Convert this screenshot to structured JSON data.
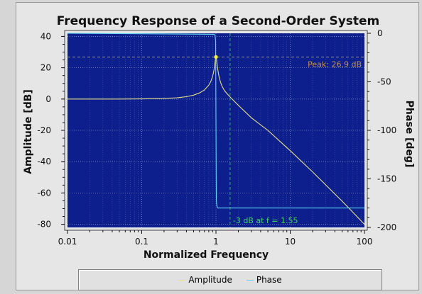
{
  "chart_data": {
    "type": "line",
    "title": "Frequency Response of a Second-Order System",
    "xlabel": "Normalized Frequency",
    "ylabel_left": "Amplitude [dB]",
    "ylabel_right": "Phase [deg]",
    "x_scale": "log",
    "xlim": [
      0.01,
      100
    ],
    "ylim_left": [
      -82,
      42
    ],
    "ylim_right": [
      -200,
      0
    ],
    "x_ticks": [
      "0.01",
      "0.1",
      "1",
      "10",
      "100"
    ],
    "y_left_ticks": [
      "40",
      "20",
      "0",
      "-20",
      "-40",
      "-60",
      "-80"
    ],
    "y_right_ticks": [
      "0",
      "-50",
      "-100",
      "-150",
      "-200"
    ],
    "grid": true,
    "background": "#0c1f8c",
    "series": [
      {
        "name": "Amplitude",
        "axis": "left",
        "color": "#e6e08a",
        "x": [
          0.01,
          0.05,
          0.1,
          0.2,
          0.3,
          0.4,
          0.5,
          0.6,
          0.7,
          0.8,
          0.85,
          0.9,
          0.93,
          0.95,
          0.97,
          0.98,
          0.99,
          1.0,
          1.01,
          1.02,
          1.03,
          1.05,
          1.07,
          1.1,
          1.15,
          1.2,
          1.3,
          1.5,
          2,
          3,
          5,
          10,
          20,
          50,
          100
        ],
        "values": [
          0.0,
          0.0,
          0.1,
          0.4,
          0.8,
          1.5,
          2.5,
          3.9,
          5.8,
          8.9,
          11.1,
          14.4,
          17.3,
          19.9,
          23.3,
          25.1,
          26.5,
          26.9,
          26.5,
          25.1,
          23.3,
          19.9,
          17.3,
          14.4,
          10.9,
          8.4,
          5.4,
          2.0,
          -4.0,
          -12.0,
          -20.0,
          -33.0,
          -46.5,
          -65.2,
          -80.0
        ]
      },
      {
        "name": "Phase",
        "axis": "right",
        "color": "#5fd3f3",
        "x": [
          0.01,
          0.95,
          0.97,
          0.99,
          1.0,
          1.01,
          1.03,
          1.05,
          100
        ],
        "values": [
          0,
          -1,
          -2,
          -8,
          -90,
          -172,
          -178,
          -180,
          -180
        ]
      }
    ],
    "annotations": [
      {
        "text": "Peak: 26.9 dB",
        "x": 1.0,
        "y": 26.9,
        "color": "#c8914a"
      },
      {
        "text": "-3 dB at f = 1.55",
        "x": 1.55,
        "color": "#3fd65a"
      }
    ],
    "reference_lines": {
      "peak_db": 26.9,
      "cutoff_freq": 1.55,
      "color": "#c8c890"
    },
    "legend_position": "bottom"
  }
}
